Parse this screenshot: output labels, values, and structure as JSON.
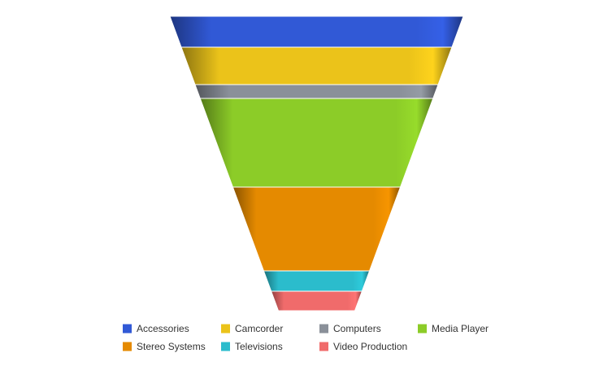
{
  "chart_data": {
    "type": "funnel",
    "categories": [
      "Accessories",
      "Camcorder",
      "Computers",
      "Media Player",
      "Stereo Systems",
      "Televisions",
      "Video Production"
    ],
    "values": [
      38,
      46,
      17,
      109,
      103,
      25,
      24
    ],
    "colors": [
      "#3159d6",
      "#ebc31a",
      "#8a9099",
      "#8ccc28",
      "#e58a00",
      "#2bbccc",
      "#f06b6b"
    ],
    "legend": "bottom"
  }
}
